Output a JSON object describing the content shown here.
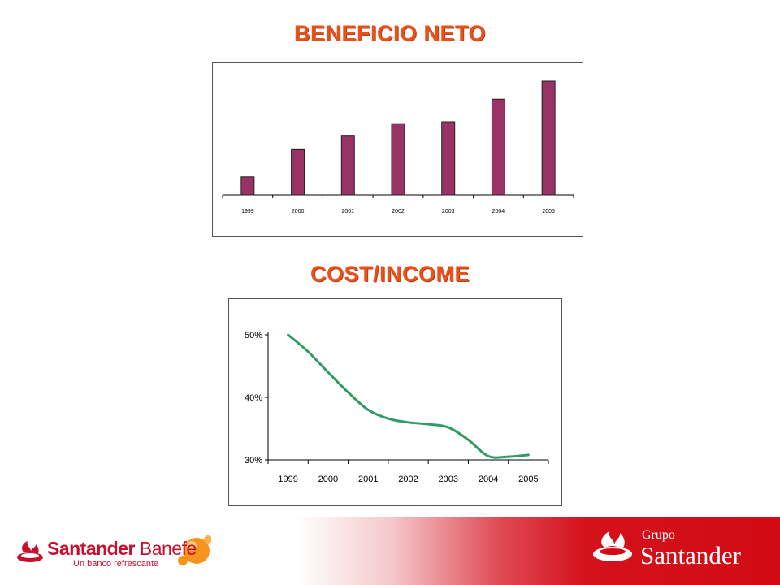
{
  "titles": {
    "top": "BENEFICIO NETO",
    "bottom": "COST/INCOME"
  },
  "chart_data": [
    {
      "type": "bar",
      "title": "BENEFICIO NETO",
      "categories": [
        "1999",
        "2000",
        "2001",
        "2002",
        "2003",
        "2004",
        "2005"
      ],
      "values": [
        20,
        51,
        66,
        79,
        81,
        106,
        126
      ],
      "ylim": [
        0,
        135
      ],
      "color": "#993366",
      "grid": false
    },
    {
      "type": "line",
      "title": "COST/INCOME",
      "x": [
        "1999",
        "1999.5",
        "2000",
        "2000.5",
        "2001",
        "2001.5",
        "2002",
        "2002.5",
        "2003",
        "2003.5",
        "2004",
        "2004.5",
        "2005"
      ],
      "categories": [
        "1999",
        "2000",
        "2001",
        "2002",
        "2003",
        "2004",
        "2005"
      ],
      "values": [
        50.0,
        47.3,
        44.0,
        40.8,
        38.0,
        36.6,
        36.0,
        35.7,
        35.2,
        33.2,
        30.6,
        30.5,
        30.8
      ],
      "ylim": [
        30,
        50
      ],
      "ytick_labels": [
        "30%",
        "40%",
        "50%"
      ],
      "ytick_values": [
        30,
        40,
        50
      ],
      "color": "#339966",
      "grid": false
    }
  ],
  "footer": {
    "left_brand": "Santander",
    "left_brand2": "Banefe",
    "left_tagline": "Un banco refrescante",
    "right_small": "Grupo",
    "right_big": "Santander"
  },
  "colors": {
    "title": "#e8511c",
    "brand_red": "#c8102e",
    "bar": "#993366",
    "line": "#339966"
  }
}
